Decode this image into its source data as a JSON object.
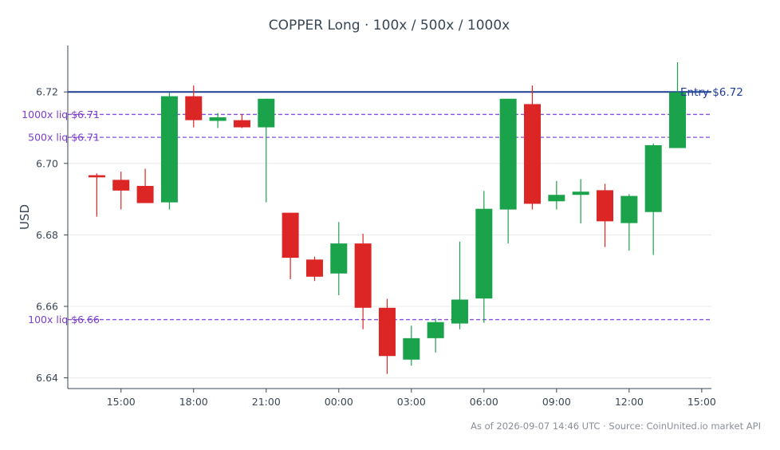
{
  "chart_data": {
    "type": "candlestick",
    "title": "COPPER Long · 100x / 500x / 1000x",
    "ylabel": "USD",
    "xlabel": "",
    "ylim": [
      6.637,
      6.733
    ],
    "xlim": [
      12.8,
      39.4
    ],
    "grid": "horizontal",
    "yticks": [
      6.64,
      6.66,
      6.68,
      6.7,
      6.72
    ],
    "ytick_labels": [
      "6.64",
      "6.66",
      "6.68",
      "6.70",
      "6.72"
    ],
    "xticks": [
      15,
      18,
      21,
      24,
      27,
      30,
      33,
      36,
      39
    ],
    "xtick_labels": [
      "15:00",
      "18:00",
      "21:00",
      "00:00",
      "03:00",
      "06:00",
      "09:00",
      "12:00",
      "15:00"
    ],
    "colors": {
      "up": "#1aa34a",
      "down": "#dc2626",
      "entry": "#1f3f94",
      "liq": "#8a4fd8",
      "grid": "#e8e8e8",
      "axis": "#3a4656"
    },
    "candles": [
      {
        "t": 14,
        "open": 6.6967,
        "high": 6.6972,
        "low": 6.6851,
        "close": 6.6961
      },
      {
        "t": 15,
        "open": 6.6954,
        "high": 6.6977,
        "low": 6.6871,
        "close": 6.6924
      },
      {
        "t": 16,
        "open": 6.6937,
        "high": 6.6985,
        "low": 6.6891,
        "close": 6.6889
      },
      {
        "t": 17,
        "open": 6.6891,
        "high": 6.7198,
        "low": 6.6871,
        "close": 6.7188
      },
      {
        "t": 18,
        "open": 6.7188,
        "high": 6.7218,
        "low": 6.7101,
        "close": 6.7121
      },
      {
        "t": 19,
        "open": 6.7119,
        "high": 6.7141,
        "low": 6.7099,
        "close": 6.7129
      },
      {
        "t": 20,
        "open": 6.7121,
        "high": 6.7138,
        "low": 6.7099,
        "close": 6.7101
      },
      {
        "t": 21,
        "open": 6.7101,
        "high": 6.7181,
        "low": 6.6891,
        "close": 6.7181
      },
      {
        "t": 22,
        "open": 6.6862,
        "high": 6.6862,
        "low": 6.6676,
        "close": 6.6736
      },
      {
        "t": 23,
        "open": 6.6731,
        "high": 6.6739,
        "low": 6.6671,
        "close": 6.6683
      },
      {
        "t": 24,
        "open": 6.6692,
        "high": 6.6836,
        "low": 6.6631,
        "close": 6.6776
      },
      {
        "t": 25,
        "open": 6.6776,
        "high": 6.6803,
        "low": 6.6536,
        "close": 6.6596
      },
      {
        "t": 26,
        "open": 6.6596,
        "high": 6.6621,
        "low": 6.6411,
        "close": 6.6461
      },
      {
        "t": 27,
        "open": 6.6451,
        "high": 6.6546,
        "low": 6.6434,
        "close": 6.6511
      },
      {
        "t": 28,
        "open": 6.6511,
        "high": 6.6566,
        "low": 6.6471,
        "close": 6.6556
      },
      {
        "t": 29,
        "open": 6.6552,
        "high": 6.6781,
        "low": 6.6536,
        "close": 6.6619
      },
      {
        "t": 30,
        "open": 6.6622,
        "high": 6.6923,
        "low": 6.6554,
        "close": 6.6873
      },
      {
        "t": 31,
        "open": 6.6871,
        "high": 6.7181,
        "low": 6.6776,
        "close": 6.7181
      },
      {
        "t": 32,
        "open": 6.7166,
        "high": 6.7218,
        "low": 6.6871,
        "close": 6.6887
      },
      {
        "t": 33,
        "open": 6.6894,
        "high": 6.6951,
        "low": 6.6871,
        "close": 6.6912
      },
      {
        "t": 34,
        "open": 6.6912,
        "high": 6.6956,
        "low": 6.6832,
        "close": 6.6921
      },
      {
        "t": 35,
        "open": 6.6925,
        "high": 6.6943,
        "low": 6.6766,
        "close": 6.6838
      },
      {
        "t": 36,
        "open": 6.6833,
        "high": 6.6914,
        "low": 6.6756,
        "close": 6.6909
      },
      {
        "t": 37,
        "open": 6.6864,
        "high": 6.7056,
        "low": 6.6744,
        "close": 6.7051
      },
      {
        "t": 38,
        "open": 6.7043,
        "high": 6.7283,
        "low": 6.7043,
        "close": 6.7199
      }
    ],
    "reference_lines": [
      {
        "label": "Entry $6.72",
        "value": 6.72,
        "style": "solid",
        "color_key": "entry",
        "label_side": "right"
      },
      {
        "label": "1000x liq $6.71",
        "value": 6.7137,
        "style": "dashed",
        "color_key": "liq",
        "label_side": "left"
      },
      {
        "label": "500x liq $6.71",
        "value": 6.7073,
        "style": "dashed",
        "color_key": "liq",
        "label_side": "left"
      },
      {
        "label": "100x liq $6.66",
        "value": 6.6563,
        "style": "dashed",
        "color_key": "liq",
        "label_side": "left"
      }
    ],
    "footnote": "As of 2026-09-07 14:46 UTC · Source: CoinUnited.io market API"
  }
}
